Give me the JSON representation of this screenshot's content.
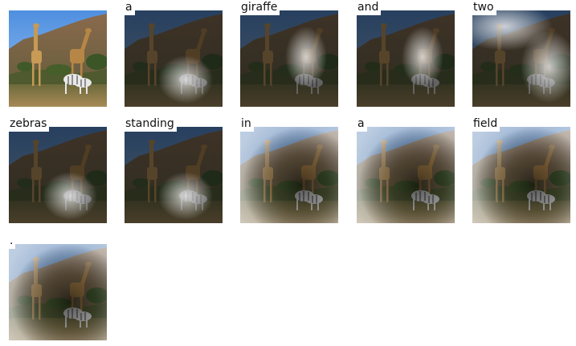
{
  "caption_words": [
    "a",
    "giraffe",
    "and",
    "two",
    "zebras",
    "standing",
    "in",
    "a",
    "field",
    "."
  ],
  "panels": [
    {
      "word": null,
      "kind": "original"
    },
    {
      "word": "a",
      "kind": "attention",
      "focus": "lower-center"
    },
    {
      "word": "giraffe",
      "kind": "attention",
      "focus": "center-right"
    },
    {
      "word": "and",
      "kind": "attention",
      "focus": "center-right"
    },
    {
      "word": "two",
      "kind": "attention",
      "focus": "broad-top-and-right"
    },
    {
      "word": "zebras",
      "kind": "attention",
      "focus": "lower-center"
    },
    {
      "word": "standing",
      "kind": "attention",
      "focus": "lower-center"
    },
    {
      "word": "in",
      "kind": "attention",
      "focus": "background-around-animals"
    },
    {
      "word": "a",
      "kind": "attention",
      "focus": "background-around-animals"
    },
    {
      "word": "field",
      "kind": "attention",
      "focus": "background-around-animals"
    },
    {
      "word": ".",
      "kind": "attention",
      "focus": "background-around-animals"
    }
  ],
  "colors": {
    "sky": "#5f9be0",
    "hill": "#7a6048",
    "grass": "#8a7040",
    "giraffe": "#c79a55",
    "zebra": "#e8e8e8",
    "overlay_dark": "#1a1a1a",
    "overlay_light": "#ffffff"
  }
}
